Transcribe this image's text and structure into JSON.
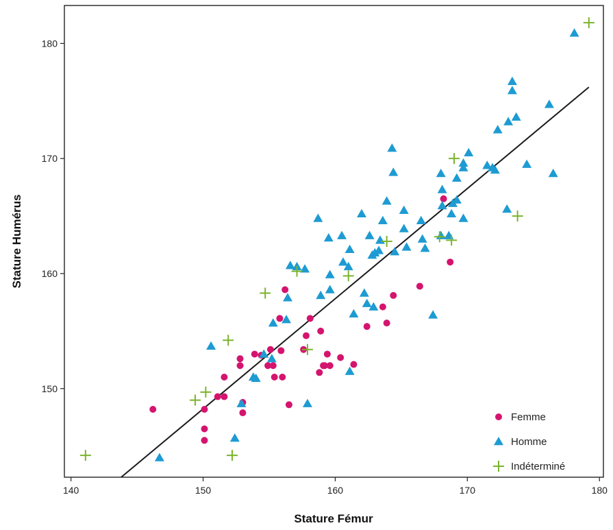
{
  "chart_data": {
    "type": "scatter",
    "xlabel": "Stature Fémur",
    "ylabel": "Stature Humérus",
    "xlim": [
      139.5,
      180.3
    ],
    "ylim": [
      142.3,
      183.3
    ],
    "xticks": [
      140,
      150,
      160,
      170,
      180
    ],
    "yticks": [
      150,
      160,
      170,
      180
    ],
    "grid": false,
    "legend_position": "bottom-right",
    "series": [
      {
        "name": "Femme",
        "color": "#d4146e",
        "marker": "circle",
        "points": [
          [
            146.2,
            148.2
          ],
          [
            150.1,
            148.2
          ],
          [
            150.1,
            146.5
          ],
          [
            150.1,
            145.5
          ],
          [
            151.1,
            149.3
          ],
          [
            151.6,
            151.0
          ],
          [
            151.6,
            149.3
          ],
          [
            152.8,
            152.6
          ],
          [
            152.8,
            152.0
          ],
          [
            153.0,
            148.8
          ],
          [
            153.0,
            147.9
          ],
          [
            153.9,
            153.0
          ],
          [
            154.4,
            152.9
          ],
          [
            154.9,
            152.0
          ],
          [
            155.1,
            153.4
          ],
          [
            155.3,
            152.0
          ],
          [
            155.4,
            151.0
          ],
          [
            155.8,
            156.1
          ],
          [
            155.9,
            153.3
          ],
          [
            156.0,
            151.0
          ],
          [
            156.2,
            158.6
          ],
          [
            156.5,
            148.6
          ],
          [
            157.6,
            153.4
          ],
          [
            157.8,
            154.6
          ],
          [
            158.1,
            156.1
          ],
          [
            158.8,
            151.4
          ],
          [
            158.9,
            155.0
          ],
          [
            159.1,
            152.0
          ],
          [
            159.2,
            152.0
          ],
          [
            159.4,
            153.0
          ],
          [
            159.6,
            152.0
          ],
          [
            160.4,
            152.7
          ],
          [
            161.4,
            152.1
          ],
          [
            162.4,
            155.4
          ],
          [
            163.6,
            157.1
          ],
          [
            163.9,
            155.7
          ],
          [
            164.4,
            158.1
          ],
          [
            166.4,
            158.9
          ],
          [
            168.2,
            166.5
          ],
          [
            168.7,
            161.0
          ]
        ]
      },
      {
        "name": "Homme",
        "color": "#1e9bd2",
        "marker": "triangle",
        "points": [
          [
            146.7,
            144.0
          ],
          [
            150.6,
            153.7
          ],
          [
            152.4,
            145.7
          ],
          [
            152.9,
            148.7
          ],
          [
            153.8,
            151.0
          ],
          [
            154.0,
            150.9
          ],
          [
            154.6,
            153.0
          ],
          [
            155.2,
            152.6
          ],
          [
            155.3,
            155.7
          ],
          [
            156.3,
            156.0
          ],
          [
            156.4,
            157.9
          ],
          [
            156.6,
            160.7
          ],
          [
            157.1,
            160.6
          ],
          [
            157.7,
            160.4
          ],
          [
            157.9,
            148.7
          ],
          [
            158.7,
            164.8
          ],
          [
            158.9,
            158.1
          ],
          [
            159.5,
            163.1
          ],
          [
            159.6,
            159.9
          ],
          [
            159.6,
            158.6
          ],
          [
            160.5,
            163.3
          ],
          [
            160.6,
            161.0
          ],
          [
            161.0,
            160.6
          ],
          [
            161.1,
            162.1
          ],
          [
            161.1,
            151.5
          ],
          [
            161.4,
            156.5
          ],
          [
            162.0,
            165.2
          ],
          [
            162.2,
            158.3
          ],
          [
            162.4,
            157.4
          ],
          [
            162.6,
            163.3
          ],
          [
            162.8,
            161.6
          ],
          [
            162.9,
            157.1
          ],
          [
            163.0,
            161.8
          ],
          [
            163.3,
            162.0
          ],
          [
            163.4,
            162.9
          ],
          [
            163.6,
            164.6
          ],
          [
            163.9,
            166.3
          ],
          [
            164.3,
            170.9
          ],
          [
            164.4,
            168.8
          ],
          [
            164.5,
            161.9
          ],
          [
            165.2,
            165.5
          ],
          [
            165.2,
            163.9
          ],
          [
            165.4,
            162.3
          ],
          [
            166.5,
            164.6
          ],
          [
            166.6,
            163.0
          ],
          [
            166.8,
            162.2
          ],
          [
            167.4,
            156.4
          ],
          [
            168.0,
            163.3
          ],
          [
            168.0,
            168.7
          ],
          [
            168.1,
            167.3
          ],
          [
            168.1,
            165.9
          ],
          [
            168.6,
            163.3
          ],
          [
            168.8,
            165.2
          ],
          [
            168.9,
            166.1
          ],
          [
            169.2,
            166.4
          ],
          [
            169.2,
            168.3
          ],
          [
            169.7,
            169.6
          ],
          [
            169.7,
            169.2
          ],
          [
            169.7,
            164.8
          ],
          [
            170.1,
            170.5
          ],
          [
            171.5,
            169.4
          ],
          [
            171.9,
            169.2
          ],
          [
            172.1,
            169.0
          ],
          [
            172.3,
            172.5
          ],
          [
            173.0,
            165.6
          ],
          [
            173.1,
            173.2
          ],
          [
            173.4,
            176.7
          ],
          [
            173.4,
            175.9
          ],
          [
            173.7,
            173.6
          ],
          [
            174.5,
            169.5
          ],
          [
            176.2,
            174.7
          ],
          [
            176.5,
            168.7
          ],
          [
            178.1,
            180.9
          ]
        ]
      },
      {
        "name": "Indéterminé",
        "color": "#7ab42c",
        "marker": "plus",
        "points": [
          [
            141.1,
            144.2
          ],
          [
            149.4,
            149.0
          ],
          [
            150.2,
            149.7
          ],
          [
            151.9,
            154.2
          ],
          [
            152.2,
            144.2
          ],
          [
            154.7,
            158.3
          ],
          [
            157.1,
            160.2
          ],
          [
            157.9,
            153.4
          ],
          [
            161.0,
            159.8
          ],
          [
            163.9,
            162.8
          ],
          [
            167.9,
            163.2
          ],
          [
            168.8,
            162.9
          ],
          [
            169.0,
            170.0
          ],
          [
            173.8,
            165.0
          ],
          [
            179.2,
            181.8
          ]
        ]
      }
    ],
    "lines": [
      {
        "type": "regression",
        "color": "#1a1a1a",
        "x": [
          143.8,
          179.2
        ],
        "y": [
          142.3,
          176.2
        ]
      }
    ]
  }
}
